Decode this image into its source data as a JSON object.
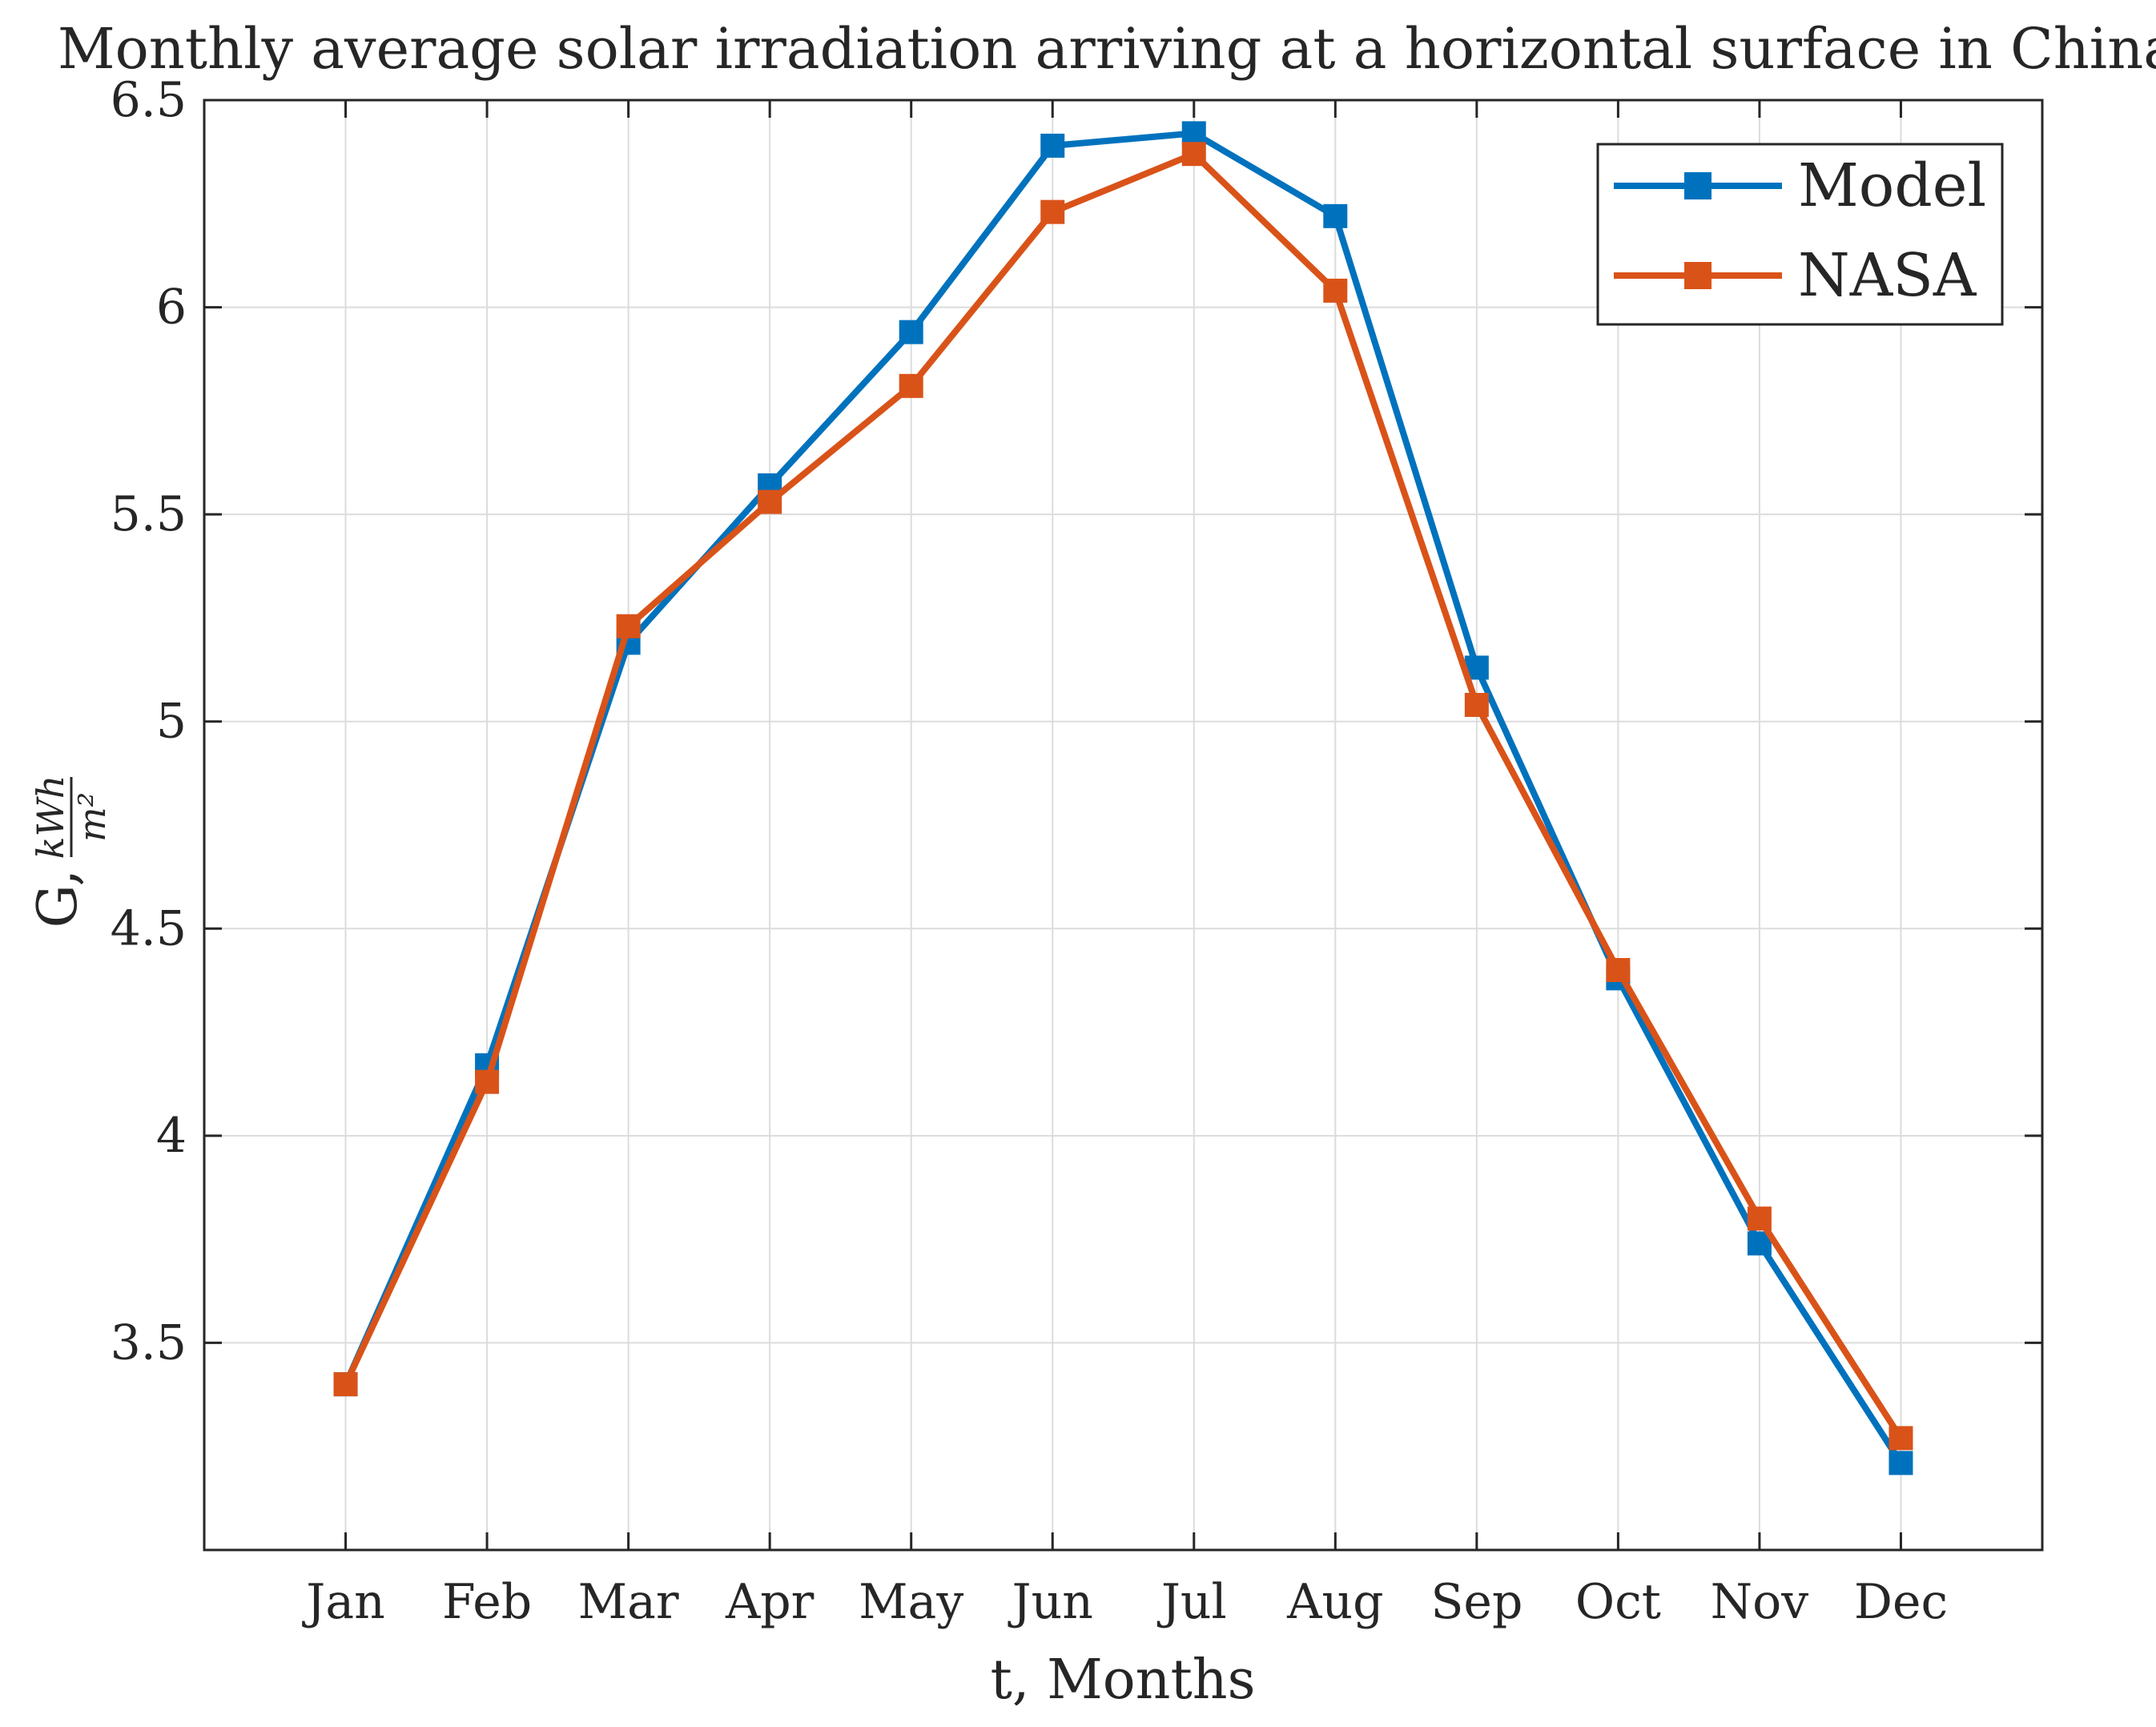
{
  "chart_data": {
    "type": "line",
    "title": "Monthly average solar irradiation arriving at a horizontal surface in China",
    "xlabel": "t, Months",
    "ylabel": {
      "prefix": "G,",
      "unit_numerator": "kWh",
      "unit_denominator": "m²"
    },
    "categories": [
      "Jan",
      "Feb",
      "Mar",
      "Apr",
      "May",
      "Jun",
      "Jul",
      "Aug",
      "Sep",
      "Oct",
      "Nov",
      "Dec"
    ],
    "ylim": [
      3.0,
      6.5
    ],
    "yticks": [
      3.5,
      4,
      4.5,
      5,
      5.5,
      6,
      6.5
    ],
    "ytick_labels": [
      "3.5",
      "4",
      "4.5",
      "5",
      "5.5",
      "6",
      "6.5"
    ],
    "grid": true,
    "legend_position": "top-right",
    "series": [
      {
        "name": "Model",
        "color": "#0072BD",
        "marker": "square",
        "values": [
          3.4,
          4.17,
          5.19,
          5.57,
          5.94,
          6.39,
          6.42,
          6.22,
          5.13,
          4.38,
          3.74,
          3.21
        ]
      },
      {
        "name": "NASA",
        "color": "#D95319",
        "marker": "square",
        "values": [
          3.4,
          4.13,
          5.23,
          5.53,
          5.81,
          6.23,
          6.37,
          6.04,
          5.04,
          4.4,
          3.8,
          3.27
        ]
      }
    ]
  }
}
